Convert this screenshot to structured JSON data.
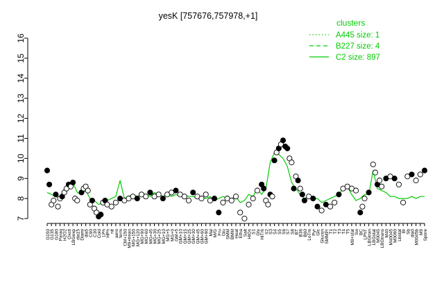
{
  "chart_data": {
    "type": "line",
    "title": "yesK [757676,757978,+1]",
    "xlabel": "",
    "ylabel": "",
    "ylim": [
      7,
      16
    ],
    "yticks": [
      7,
      8,
      9,
      10,
      11,
      12,
      13,
      14,
      15,
      16
    ],
    "grid": false,
    "legend": {
      "title": "clusters",
      "position": "top-right",
      "entries": [
        {
          "label": "A445 size: 1",
          "style": "dotted",
          "color": "#00cc00"
        },
        {
          "label": "B227 size: 4",
          "style": "dashed",
          "color": "#00cc00"
        },
        {
          "label": "C2 size: 897",
          "style": "solid",
          "color": "#00cc00"
        }
      ]
    },
    "x_tick_labels": [
      "G150",
      "G135",
      "G180",
      "Paraq",
      "H2O2",
      "Oxctl",
      "LBGexp",
      "dia15",
      "Diami",
      "dia5",
      "C90",
      "C30",
      "Cold",
      "LPh",
      "HPh",
      "nit",
      "aero",
      "ferm",
      "CM+150",
      "M9+trean",
      "MG+150",
      "MG+120",
      "MG+90",
      "MG+60",
      "MG+45",
      "MG+30",
      "MG+25",
      "MG+10",
      "MG+5",
      "MG+0",
      "GM+5",
      "GM+10",
      "GM+15",
      "GM+25",
      "GM+30",
      "GM+45",
      "GM+60",
      "GM+90",
      "Mal",
      "M/G",
      "Fru",
      "Glu",
      "SMM",
      "BMM",
      "Heat",
      "Etha",
      "Salt",
      "HiOs",
      "S1",
      "Gly",
      "HiTm",
      "S2",
      "S3",
      "S4",
      "S5",
      "S6",
      "S7",
      "S8",
      "BT",
      "B36",
      "B60",
      "LoTm",
      "Pyr",
      "Glc",
      "Glucon",
      "SMMPr",
      "T1",
      "T2",
      "T3",
      "T4",
      "T5",
      "M9+sfat",
      "Sw",
      "BC",
      "LPhT",
      "LBGtran",
      "LBGstat",
      "M0045",
      "LBGtrans",
      "M40",
      "M40045",
      "M0090",
      "Lbstat",
      "BI",
      "Sb",
      "dia0",
      "M0045b",
      "M9",
      "Spore"
    ],
    "series": [
      {
        "name": "",
        "style": "solid",
        "values": [
          8.3,
          8.2,
          8.1,
          8.0,
          8.5,
          8.6,
          8.8,
          8.3,
          8.2,
          8.4,
          8.0,
          7.9,
          7.7,
          7.8,
          7.9,
          8.0,
          8.1,
          8.9,
          8.0,
          8.1,
          8.2,
          8.1,
          8.2,
          8.2,
          8.1,
          8.3,
          8.2,
          8.1,
          8.2,
          8.1,
          8.2,
          8.1,
          8.2,
          8.1,
          8.1,
          8.0,
          8.1,
          8.0,
          8.1,
          7.9,
          8.0,
          8.1,
          8.0,
          8.0,
          8.1,
          7.8,
          7.9,
          8.2,
          8.1,
          8.5,
          8.2,
          8.5,
          9.8,
          10.3,
          10.2,
          10.0,
          9.6,
          8.8,
          8.5,
          8.2,
          8.0,
          8.1,
          8.0,
          8.0,
          7.8,
          7.9,
          8.0,
          8.1,
          8.2,
          8.5,
          8.6,
          8.2,
          7.9,
          8.0,
          8.2,
          8.2,
          9.4,
          8.5,
          8.4,
          8.3,
          8.1,
          8.1,
          8.0,
          8.0,
          8.0,
          8.1,
          8.0,
          8.1,
          8.1
        ]
      }
    ],
    "points": [
      {
        "x": 0,
        "y": 9.4,
        "filled": true
      },
      {
        "x": 0.5,
        "y": 8.7,
        "filled": true
      },
      {
        "x": 1,
        "y": 7.7,
        "filled": false
      },
      {
        "x": 1.5,
        "y": 7.9,
        "filled": false
      },
      {
        "x": 2,
        "y": 8.2,
        "filled": true
      },
      {
        "x": 2.5,
        "y": 7.6,
        "filled": false
      },
      {
        "x": 3,
        "y": 8.0,
        "filled": false
      },
      {
        "x": 3.5,
        "y": 8.1,
        "filled": true
      },
      {
        "x": 4,
        "y": 8.3,
        "filled": false
      },
      {
        "x": 4.5,
        "y": 8.5,
        "filled": false
      },
      {
        "x": 5,
        "y": 8.7,
        "filled": true
      },
      {
        "x": 5.5,
        "y": 8.6,
        "filled": false
      },
      {
        "x": 6,
        "y": 8.8,
        "filled": true
      },
      {
        "x": 6.5,
        "y": 8.0,
        "filled": false
      },
      {
        "x": 7,
        "y": 7.9,
        "filled": false
      },
      {
        "x": 8,
        "y": 8.3,
        "filled": true
      },
      {
        "x": 8.5,
        "y": 8.5,
        "filled": false
      },
      {
        "x": 9,
        "y": 8.6,
        "filled": false
      },
      {
        "x": 9.5,
        "y": 8.4,
        "filled": false
      },
      {
        "x": 10,
        "y": 7.7,
        "filled": false
      },
      {
        "x": 10.5,
        "y": 7.9,
        "filled": true
      },
      {
        "x": 11,
        "y": 7.5,
        "filled": false
      },
      {
        "x": 11.5,
        "y": 7.3,
        "filled": false
      },
      {
        "x": 12,
        "y": 7.1,
        "filled": true
      },
      {
        "x": 12.5,
        "y": 7.2,
        "filled": true
      },
      {
        "x": 13,
        "y": 7.8,
        "filled": false
      },
      {
        "x": 13.5,
        "y": 7.9,
        "filled": true
      },
      {
        "x": 14,
        "y": 7.7,
        "filled": false
      },
      {
        "x": 15,
        "y": 7.6,
        "filled": false
      },
      {
        "x": 16,
        "y": 7.8,
        "filled": false
      },
      {
        "x": 17,
        "y": 8.0,
        "filled": true
      },
      {
        "x": 18,
        "y": 7.9,
        "filled": false
      },
      {
        "x": 19,
        "y": 8.0,
        "filled": false
      },
      {
        "x": 20,
        "y": 8.1,
        "filled": false
      },
      {
        "x": 21,
        "y": 8.0,
        "filled": true
      },
      {
        "x": 22,
        "y": 8.2,
        "filled": false
      },
      {
        "x": 23,
        "y": 8.1,
        "filled": false
      },
      {
        "x": 24,
        "y": 8.3,
        "filled": true
      },
      {
        "x": 25,
        "y": 8.1,
        "filled": false
      },
      {
        "x": 26,
        "y": 8.2,
        "filled": false
      },
      {
        "x": 27,
        "y": 8.0,
        "filled": true
      },
      {
        "x": 28,
        "y": 8.2,
        "filled": false
      },
      {
        "x": 29,
        "y": 8.3,
        "filled": false
      },
      {
        "x": 30,
        "y": 8.4,
        "filled": true
      },
      {
        "x": 31,
        "y": 8.2,
        "filled": false
      },
      {
        "x": 32,
        "y": 8.1,
        "filled": false
      },
      {
        "x": 33,
        "y": 7.9,
        "filled": false
      },
      {
        "x": 34,
        "y": 8.3,
        "filled": true
      },
      {
        "x": 35,
        "y": 8.1,
        "filled": false
      },
      {
        "x": 36,
        "y": 8.0,
        "filled": false
      },
      {
        "x": 37,
        "y": 8.2,
        "filled": false
      },
      {
        "x": 38,
        "y": 7.9,
        "filled": false
      },
      {
        "x": 39,
        "y": 8.0,
        "filled": true
      },
      {
        "x": 40,
        "y": 7.3,
        "filled": true
      },
      {
        "x": 41,
        "y": 7.8,
        "filled": false
      },
      {
        "x": 42,
        "y": 8.0,
        "filled": false
      },
      {
        "x": 43,
        "y": 7.9,
        "filled": false
      },
      {
        "x": 44,
        "y": 8.1,
        "filled": false
      },
      {
        "x": 45,
        "y": 7.3,
        "filled": false
      },
      {
        "x": 46,
        "y": 7.0,
        "filled": false
      },
      {
        "x": 47,
        "y": 7.7,
        "filled": false
      },
      {
        "x": 48,
        "y": 8.0,
        "filled": false
      },
      {
        "x": 49,
        "y": 8.4,
        "filled": false
      },
      {
        "x": 50,
        "y": 8.7,
        "filled": true
      },
      {
        "x": 50.5,
        "y": 8.5,
        "filled": true
      },
      {
        "x": 51,
        "y": 7.9,
        "filled": false
      },
      {
        "x": 51.5,
        "y": 7.7,
        "filled": false
      },
      {
        "x": 52,
        "y": 8.2,
        "filled": true
      },
      {
        "x": 52.5,
        "y": 8.1,
        "filled": false
      },
      {
        "x": 53,
        "y": 9.9,
        "filled": true
      },
      {
        "x": 53.5,
        "y": 10.3,
        "filled": false
      },
      {
        "x": 54,
        "y": 10.5,
        "filled": true
      },
      {
        "x": 54.5,
        "y": 10.7,
        "filled": false
      },
      {
        "x": 55,
        "y": 10.9,
        "filled": true
      },
      {
        "x": 55.5,
        "y": 10.6,
        "filled": true
      },
      {
        "x": 56,
        "y": 10.5,
        "filled": true
      },
      {
        "x": 56.5,
        "y": 10.0,
        "filled": false
      },
      {
        "x": 57,
        "y": 9.8,
        "filled": false
      },
      {
        "x": 57.5,
        "y": 8.5,
        "filled": true
      },
      {
        "x": 58,
        "y": 9.1,
        "filled": false
      },
      {
        "x": 58.5,
        "y": 8.9,
        "filled": true
      },
      {
        "x": 59,
        "y": 8.5,
        "filled": false
      },
      {
        "x": 59.5,
        "y": 8.2,
        "filled": true
      },
      {
        "x": 60,
        "y": 7.9,
        "filled": true
      },
      {
        "x": 61,
        "y": 8.1,
        "filled": false
      },
      {
        "x": 62,
        "y": 8.0,
        "filled": true
      },
      {
        "x": 63,
        "y": 7.6,
        "filled": true
      },
      {
        "x": 64,
        "y": 7.4,
        "filled": false
      },
      {
        "x": 65,
        "y": 7.7,
        "filled": true
      },
      {
        "x": 66,
        "y": 7.6,
        "filled": false
      },
      {
        "x": 67,
        "y": 7.8,
        "filled": false
      },
      {
        "x": 68,
        "y": 8.2,
        "filled": true
      },
      {
        "x": 69,
        "y": 8.5,
        "filled": false
      },
      {
        "x": 70,
        "y": 8.6,
        "filled": false
      },
      {
        "x": 71,
        "y": 8.5,
        "filled": false
      },
      {
        "x": 72,
        "y": 8.4,
        "filled": false
      },
      {
        "x": 73,
        "y": 7.3,
        "filled": true
      },
      {
        "x": 73.5,
        "y": 7.6,
        "filled": false
      },
      {
        "x": 74,
        "y": 8.0,
        "filled": false
      },
      {
        "x": 75,
        "y": 8.3,
        "filled": true
      },
      {
        "x": 76,
        "y": 9.7,
        "filled": false
      },
      {
        "x": 76.5,
        "y": 9.3,
        "filled": false
      },
      {
        "x": 77,
        "y": 8.7,
        "filled": true
      },
      {
        "x": 77.5,
        "y": 8.9,
        "filled": false
      },
      {
        "x": 78,
        "y": 8.6,
        "filled": false
      },
      {
        "x": 79,
        "y": 9.0,
        "filled": true
      },
      {
        "x": 80,
        "y": 9.1,
        "filled": false
      },
      {
        "x": 81,
        "y": 9.0,
        "filled": true
      },
      {
        "x": 82,
        "y": 8.7,
        "filled": false
      },
      {
        "x": 83,
        "y": 7.8,
        "filled": false
      },
      {
        "x": 84,
        "y": 9.1,
        "filled": false
      },
      {
        "x": 85,
        "y": 9.2,
        "filled": true
      },
      {
        "x": 86,
        "y": 8.9,
        "filled": false
      },
      {
        "x": 87,
        "y": 9.2,
        "filled": false
      },
      {
        "x": 88,
        "y": 9.4,
        "filled": true
      }
    ]
  }
}
